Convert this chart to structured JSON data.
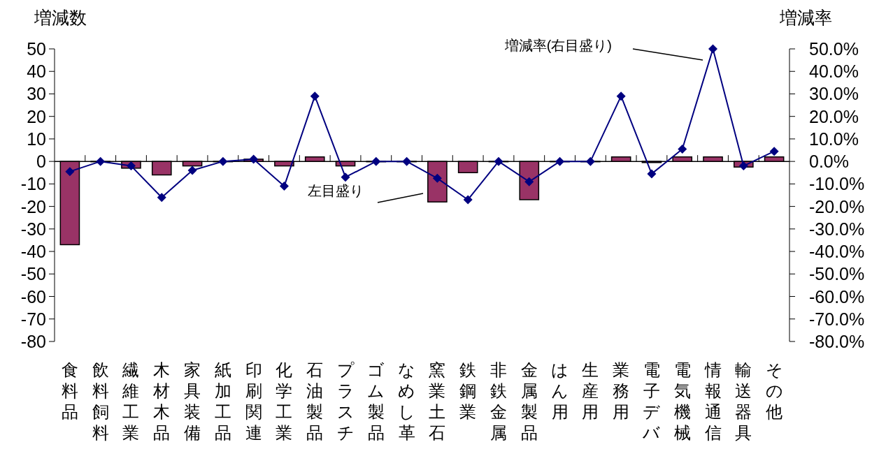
{
  "chart_data": {
    "type": "bar",
    "ylabel": "増減数",
    "y2label": "増減率",
    "categories": [
      "食料品",
      "飲料飼料",
      "繊維工業",
      "木材木品",
      "家具装備",
      "紙加工品",
      "印刷関連",
      "化学工業",
      "石油製品",
      "プラスチ",
      "ゴム製品",
      "なめし革",
      "窯業土石",
      "鉄鋼業",
      "非鉄金属",
      "金属製品",
      "はん用",
      "生産用",
      "業務用",
      "電子デバ",
      "電気機械",
      "情報通信",
      "輸送器具",
      "その他"
    ],
    "series": [
      {
        "color": "#993366",
        "values": [
          -37,
          0,
          -3,
          -6,
          -2,
          0,
          1,
          -2,
          2,
          -2,
          0,
          0,
          -18,
          -5,
          0,
          -17,
          0,
          0,
          2,
          -0.5,
          2,
          2,
          -2.5,
          2
        ]
      },
      {
        "type": "line",
        "color": "#000080",
        "values": [
          -4.5,
          0,
          -2,
          -16,
          -4,
          0,
          1,
          -11,
          29,
          -7,
          0,
          0,
          -7.5,
          -17,
          0,
          -9,
          0,
          0,
          29,
          -5.5,
          5.5,
          50,
          -2,
          4.5
        ]
      }
    ],
    "ylim": [
      -80,
      50
    ],
    "yticks": [
      -80,
      -70,
      -60,
      -50,
      -40,
      -30,
      -20,
      -10,
      0,
      10,
      20,
      30,
      40,
      50
    ],
    "y2lim": [
      -80,
      50
    ],
    "y2ticks": [
      {
        "value": -80,
        "label": "-80.0%"
      },
      {
        "value": -70,
        "label": "-70.0%"
      },
      {
        "value": -60,
        "label": "-60.0%"
      },
      {
        "value": -50,
        "label": "-50.0%"
      },
      {
        "value": -40,
        "label": "-40.0%"
      },
      {
        "value": -30,
        "label": "-30.0%"
      },
      {
        "value": -20,
        "label": "-20.0%"
      },
      {
        "value": -10,
        "label": "-10.0%"
      },
      {
        "value": 0,
        "label": "0.0%"
      },
      {
        "value": 10,
        "label": "10.0%"
      },
      {
        "value": 20,
        "label": "20.0%"
      },
      {
        "value": 30,
        "label": "30.0%"
      },
      {
        "value": 40,
        "label": "40.0%"
      },
      {
        "value": 50,
        "label": "50.0%"
      }
    ],
    "marker": "diamond",
    "annotations": [
      "増減率(右目盛り)",
      "左目盛り"
    ]
  }
}
